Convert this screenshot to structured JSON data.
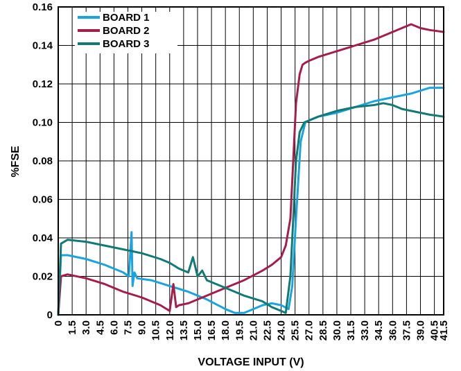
{
  "chart_data": {
    "type": "line",
    "title": "",
    "xlabel": "VOLTAGE INPUT (V)",
    "ylabel": "%FSE",
    "xlim": [
      0,
      41.5
    ],
    "ylim": [
      0,
      0.16
    ],
    "x_ticks": [
      "0",
      "1.5",
      "3.0",
      "4.5",
      "6.0",
      "7.5",
      "9.0",
      "10.5",
      "12.0",
      "13.5",
      "15.0",
      "16.5",
      "18.0",
      "19.5",
      "21.0",
      "22.5",
      "24.0",
      "25.5",
      "27.0",
      "28.5",
      "30.0",
      "31.5",
      "33.0",
      "34.5",
      "36.0",
      "37.5",
      "39.0",
      "40.5",
      "41.5"
    ],
    "y_ticks": [
      "0",
      "0.02",
      "0.04",
      "0.06",
      "0.08",
      "0.10",
      "0.12",
      "0.14",
      "0.16"
    ],
    "grid": "on",
    "legend_position": "top-left",
    "series": [
      {
        "name": "BOARD 1",
        "color": "#1aa3dc",
        "x": [
          0,
          0.3,
          1,
          3,
          5,
          7,
          7.6,
          7.9,
          8.0,
          8.2,
          8.5,
          10,
          12,
          14,
          16,
          18,
          19,
          20,
          21,
          22,
          23,
          24,
          24.8,
          25.2,
          25.6,
          26.1,
          26.6,
          27,
          28,
          30,
          32,
          34,
          36,
          38,
          40,
          41.5
        ],
        "y": [
          0,
          0.031,
          0.031,
          0.029,
          0.026,
          0.022,
          0.02,
          0.043,
          0.015,
          0.022,
          0.019,
          0.018,
          0.015,
          0.012,
          0.008,
          0.003,
          0.001,
          0.001,
          0.003,
          0.005,
          0.006,
          0.005,
          0.003,
          0.015,
          0.05,
          0.09,
          0.1,
          0.101,
          0.103,
          0.105,
          0.108,
          0.111,
          0.113,
          0.115,
          0.118,
          0.118
        ]
      },
      {
        "name": "BOARD 2",
        "color": "#a41e49",
        "x": [
          0,
          0.3,
          1,
          3,
          5,
          7,
          9,
          11,
          12,
          12.4,
          12.7,
          13,
          14,
          16,
          18,
          20,
          22,
          23,
          24,
          24.5,
          25,
          25.3,
          25.6,
          26,
          26.3,
          26.6,
          27,
          28,
          30,
          32,
          34,
          36,
          37,
          38,
          39,
          40,
          41.5
        ],
        "y": [
          0,
          0.02,
          0.021,
          0.019,
          0.016,
          0.012,
          0.009,
          0.005,
          0.002,
          0.016,
          0.004,
          0.005,
          0.006,
          0.01,
          0.014,
          0.018,
          0.023,
          0.026,
          0.03,
          0.036,
          0.05,
          0.08,
          0.11,
          0.125,
          0.13,
          0.131,
          0.132,
          0.134,
          0.137,
          0.14,
          0.143,
          0.147,
          0.149,
          0.151,
          0.149,
          0.148,
          0.147
        ]
      },
      {
        "name": "BOARD 3",
        "color": "#117a74",
        "x": [
          0,
          0.3,
          1,
          3,
          5,
          7,
          9,
          11,
          12,
          13,
          14,
          14.5,
          15,
          15.5,
          16,
          18,
          20,
          22,
          23,
          24,
          24.5,
          25,
          25.3,
          25.6,
          26,
          26.5,
          27,
          28,
          30,
          32,
          34,
          35,
          36,
          37,
          38,
          40,
          41.5
        ],
        "y": [
          0,
          0.037,
          0.039,
          0.038,
          0.036,
          0.034,
          0.032,
          0.029,
          0.027,
          0.024,
          0.022,
          0.03,
          0.02,
          0.023,
          0.018,
          0.014,
          0.01,
          0.007,
          0.004,
          0.002,
          0.001,
          0.02,
          0.05,
          0.08,
          0.095,
          0.1,
          0.101,
          0.103,
          0.106,
          0.108,
          0.109,
          0.11,
          0.109,
          0.107,
          0.106,
          0.104,
          0.103
        ]
      }
    ]
  }
}
